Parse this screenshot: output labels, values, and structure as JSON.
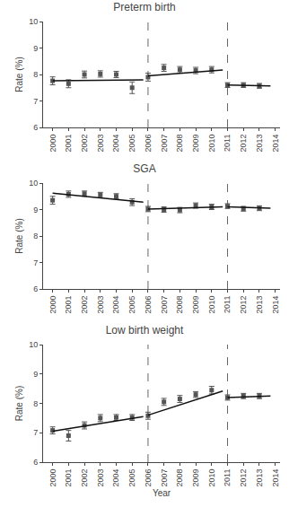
{
  "chart_data": [
    {
      "type": "scatter",
      "title": "Preterm birth",
      "y_label": "Rate (%)",
      "x": [
        2000,
        2001,
        2002,
        2003,
        2004,
        2005,
        2006,
        2007,
        2008,
        2009,
        2010,
        2011,
        2012,
        2013
      ],
      "xlim": [
        1999.4,
        2014.3
      ],
      "xticks": [
        2000,
        2001,
        2002,
        2003,
        2004,
        2005,
        2006,
        2007,
        2008,
        2009,
        2010,
        2011,
        2012,
        2013,
        2014
      ],
      "ylim": [
        6,
        10
      ],
      "yticks": [
        6,
        7,
        8,
        9,
        10
      ],
      "grid": false,
      "series": [
        {
          "type": "scatter",
          "marker": "square",
          "color": "#555555",
          "values": [
            7.76,
            7.65,
            8.0,
            8.02,
            8.0,
            7.5,
            7.9,
            8.25,
            8.18,
            8.15,
            8.18,
            7.6,
            7.6,
            7.57
          ],
          "errors": [
            0.15,
            0.15,
            0.13,
            0.12,
            0.12,
            0.22,
            0.15,
            0.13,
            0.12,
            0.12,
            0.12,
            0.09,
            0.09,
            0.09
          ]
        },
        {
          "type": "line",
          "color": "#111111",
          "x": [
            2000,
            2005.7
          ],
          "values": [
            7.76,
            7.8
          ]
        },
        {
          "type": "line",
          "color": "#111111",
          "x": [
            2006,
            2010.7
          ],
          "values": [
            7.95,
            8.17
          ]
        },
        {
          "type": "line",
          "color": "#111111",
          "x": [
            2011,
            2013.7
          ],
          "values": [
            7.6,
            7.57
          ]
        },
        {
          "type": "vline",
          "line_style": "dashed",
          "color": "#666666",
          "x": [
            2006,
            2011
          ]
        }
      ]
    },
    {
      "type": "scatter",
      "title": "SGA",
      "y_label": "Rate (%)",
      "x": [
        2000,
        2001,
        2002,
        2003,
        2004,
        2005,
        2006,
        2007,
        2008,
        2009,
        2010,
        2011,
        2012,
        2013
      ],
      "xlim": [
        1999.4,
        2014.3
      ],
      "xticks": [
        2000,
        2001,
        2002,
        2003,
        2004,
        2005,
        2006,
        2007,
        2008,
        2009,
        2010,
        2011,
        2012,
        2013,
        2014
      ],
      "ylim": [
        6,
        10
      ],
      "yticks": [
        6,
        7,
        8,
        9,
        10
      ],
      "grid": false,
      "series": [
        {
          "type": "scatter",
          "marker": "square",
          "color": "#555555",
          "values": [
            9.35,
            9.58,
            9.6,
            9.55,
            9.5,
            9.28,
            9.02,
            9.0,
            8.98,
            9.15,
            9.1,
            9.13,
            9.03,
            9.05
          ],
          "errors": [
            0.15,
            0.12,
            0.1,
            0.1,
            0.1,
            0.13,
            0.1,
            0.1,
            0.1,
            0.1,
            0.1,
            0.09,
            0.09,
            0.09
          ]
        },
        {
          "type": "line",
          "color": "#111111",
          "x": [
            2000,
            2005.7
          ],
          "values": [
            9.62,
            9.28
          ]
        },
        {
          "type": "line",
          "color": "#111111",
          "x": [
            2006,
            2010.7
          ],
          "values": [
            9.02,
            9.1
          ]
        },
        {
          "type": "line",
          "color": "#111111",
          "x": [
            2011,
            2013.7
          ],
          "values": [
            9.1,
            9.05
          ]
        },
        {
          "type": "vline",
          "line_style": "dashed",
          "color": "#666666",
          "x": [
            2006,
            2011
          ]
        }
      ]
    },
    {
      "type": "scatter",
      "title": "Low birth weight",
      "y_label": "Rate (%)",
      "x_label": "Year",
      "x": [
        2000,
        2001,
        2002,
        2003,
        2004,
        2005,
        2006,
        2007,
        2008,
        2009,
        2010,
        2011,
        2012,
        2013
      ],
      "xlim": [
        1999.4,
        2014.3
      ],
      "xticks": [
        2000,
        2001,
        2002,
        2003,
        2004,
        2005,
        2006,
        2007,
        2008,
        2009,
        2010,
        2011,
        2012,
        2013,
        2014
      ],
      "ylim": [
        6,
        10
      ],
      "yticks": [
        6,
        7,
        8,
        9,
        10
      ],
      "grid": false,
      "series": [
        {
          "type": "scatter",
          "marker": "square",
          "color": "#555555",
          "values": [
            7.08,
            6.9,
            7.25,
            7.5,
            7.52,
            7.52,
            7.58,
            8.05,
            8.15,
            8.3,
            8.45,
            8.2,
            8.25,
            8.25
          ],
          "errors": [
            0.12,
            0.18,
            0.12,
            0.12,
            0.1,
            0.1,
            0.12,
            0.12,
            0.12,
            0.1,
            0.13,
            0.09,
            0.09,
            0.09
          ]
        },
        {
          "type": "line",
          "color": "#111111",
          "x": [
            2000,
            2005.7
          ],
          "values": [
            7.05,
            7.55
          ]
        },
        {
          "type": "line",
          "color": "#111111",
          "x": [
            2006,
            2010.7
          ],
          "values": [
            7.6,
            8.42
          ]
        },
        {
          "type": "line",
          "color": "#111111",
          "x": [
            2011,
            2013.7
          ],
          "values": [
            8.2,
            8.25
          ]
        },
        {
          "type": "vline",
          "line_style": "dashed",
          "color": "#666666",
          "x": [
            2006,
            2011
          ]
        }
      ]
    }
  ]
}
